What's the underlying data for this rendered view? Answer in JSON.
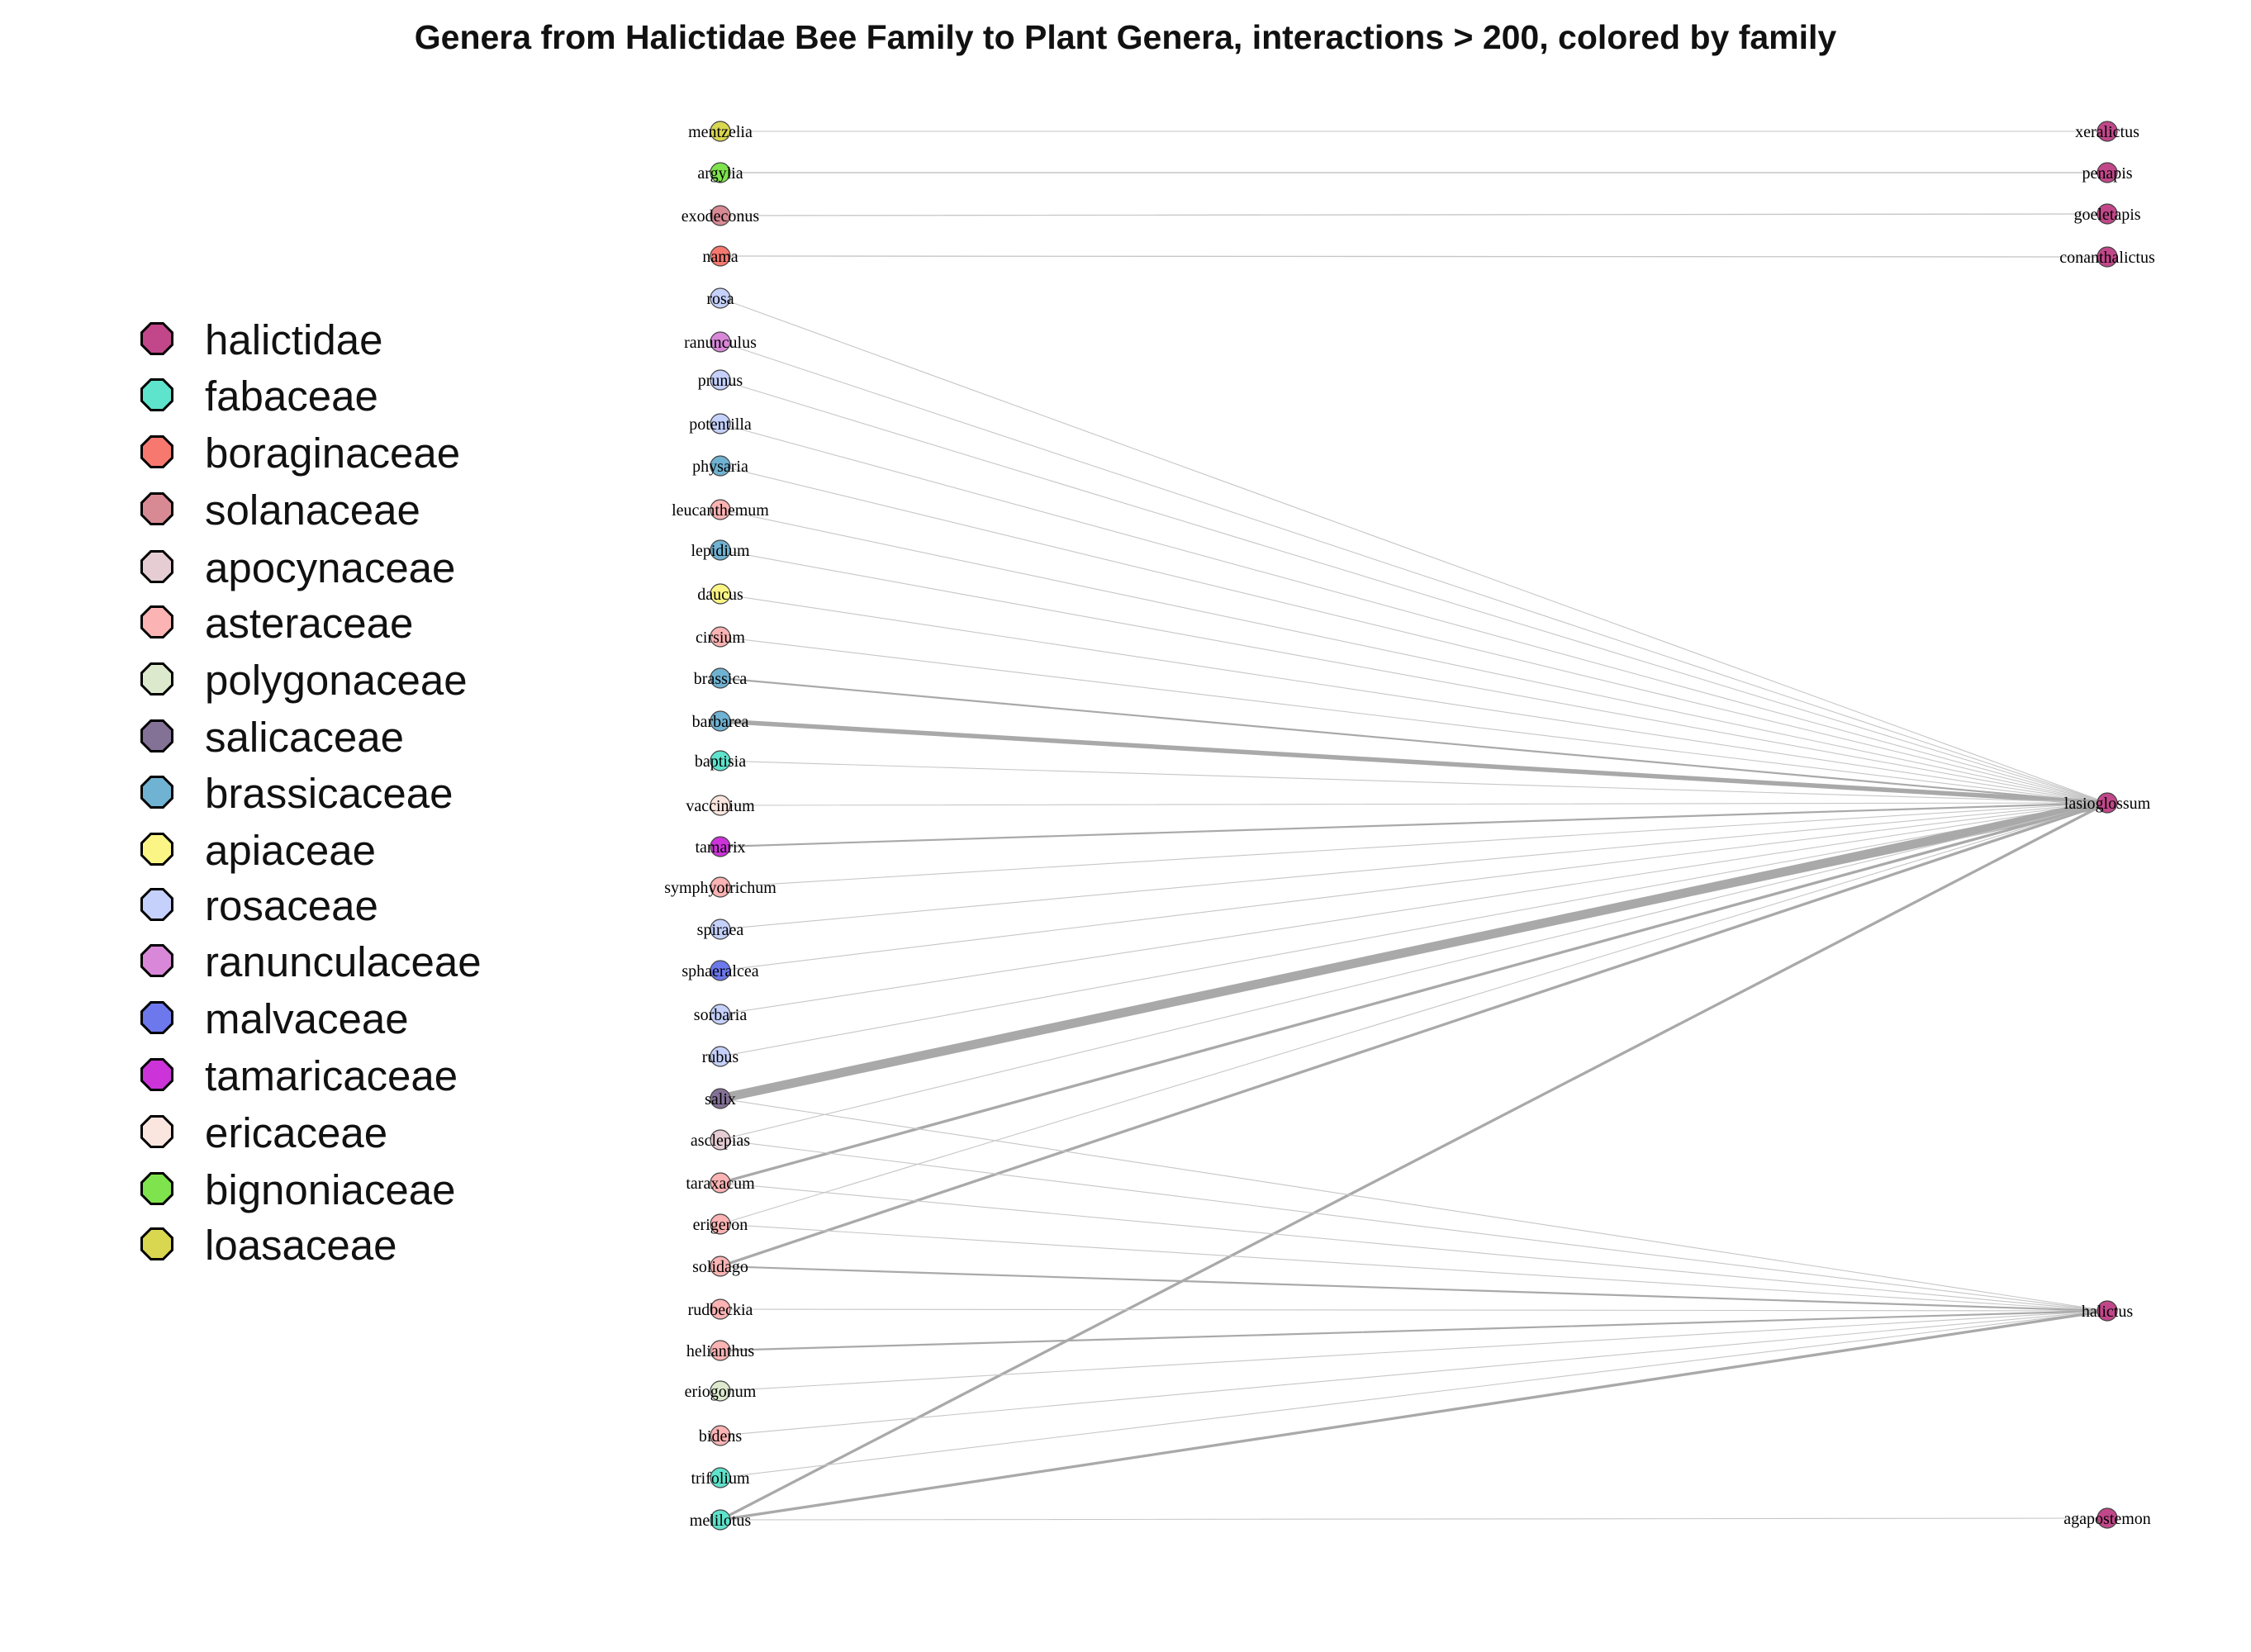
{
  "title": "Genera from Halictidae Bee Family to Plant Genera, interactions > 200, colored by family",
  "legend": [
    {
      "family": "halictidae",
      "color": "#c2478a"
    },
    {
      "family": "fabaceae",
      "color": "#5ee3cc"
    },
    {
      "family": "boraginaceae",
      "color": "#f7786f"
    },
    {
      "family": "solanaceae",
      "color": "#d88a94"
    },
    {
      "family": "apocynaceae",
      "color": "#e6cdd3"
    },
    {
      "family": "asteraceae",
      "color": "#fcb3b3"
    },
    {
      "family": "polygonaceae",
      "color": "#dce9cd"
    },
    {
      "family": "salicaceae",
      "color": "#847196"
    },
    {
      "family": "brassicaceae",
      "color": "#70b2d2"
    },
    {
      "family": "apiaceae",
      "color": "#fbf585"
    },
    {
      "family": "rosaceae",
      "color": "#c5d1fb"
    },
    {
      "family": "ranunculaceae",
      "color": "#d988d9"
    },
    {
      "family": "malvaceae",
      "color": "#6c78ec"
    },
    {
      "family": "tamaricaceae",
      "color": "#cc33d9"
    },
    {
      "family": "ericaceae",
      "color": "#fbe6df"
    },
    {
      "family": "bignoniaceae",
      "color": "#7ee34c"
    },
    {
      "family": "loasaceae",
      "color": "#d9d650"
    }
  ],
  "plant_nodes": [
    {
      "name": "mentzelia",
      "family": "loasaceae"
    },
    {
      "name": "argylia",
      "family": "bignoniaceae"
    },
    {
      "name": "exodeconus",
      "family": "solanaceae"
    },
    {
      "name": "nama",
      "family": "boraginaceae"
    },
    {
      "name": "rosa",
      "family": "rosaceae"
    },
    {
      "name": "ranunculus",
      "family": "ranunculaceae"
    },
    {
      "name": "prunus",
      "family": "rosaceae"
    },
    {
      "name": "potentilla",
      "family": "rosaceae"
    },
    {
      "name": "physaria",
      "family": "brassicaceae"
    },
    {
      "name": "leucanthemum",
      "family": "asteraceae"
    },
    {
      "name": "lepidium",
      "family": "brassicaceae"
    },
    {
      "name": "daucus",
      "family": "apiaceae"
    },
    {
      "name": "cirsium",
      "family": "asteraceae"
    },
    {
      "name": "brassica",
      "family": "brassicaceae"
    },
    {
      "name": "barbarea",
      "family": "brassicaceae"
    },
    {
      "name": "baptisia",
      "family": "fabaceae"
    },
    {
      "name": "vaccinium",
      "family": "ericaceae"
    },
    {
      "name": "tamarix",
      "family": "tamaricaceae"
    },
    {
      "name": "symphyotrichum",
      "family": "asteraceae"
    },
    {
      "name": "spiraea",
      "family": "rosaceae"
    },
    {
      "name": "sphaeralcea",
      "family": "malvaceae"
    },
    {
      "name": "sorbaria",
      "family": "rosaceae"
    },
    {
      "name": "rubus",
      "family": "rosaceae"
    },
    {
      "name": "salix",
      "family": "salicaceae"
    },
    {
      "name": "asclepias",
      "family": "apocynaceae"
    },
    {
      "name": "taraxacum",
      "family": "asteraceae"
    },
    {
      "name": "erigeron",
      "family": "asteraceae"
    },
    {
      "name": "solidago",
      "family": "asteraceae"
    },
    {
      "name": "rudbeckia",
      "family": "asteraceae"
    },
    {
      "name": "helianthus",
      "family": "asteraceae"
    },
    {
      "name": "eriogonum",
      "family": "polygonaceae"
    },
    {
      "name": "bidens",
      "family": "asteraceae"
    },
    {
      "name": "trifolium",
      "family": "fabaceae"
    },
    {
      "name": "melilotus",
      "family": "fabaceae"
    }
  ],
  "bee_nodes": [
    {
      "name": "xeralictus",
      "family": "halictidae"
    },
    {
      "name": "penapis",
      "family": "halictidae"
    },
    {
      "name": "goeletapis",
      "family": "halictidae"
    },
    {
      "name": "conanthalictus",
      "family": "halictidae"
    },
    {
      "name": "lasioglossum",
      "family": "halictidae"
    },
    {
      "name": "halictus",
      "family": "halictidae"
    },
    {
      "name": "agapostemon",
      "family": "halictidae"
    }
  ],
  "edges": [
    {
      "from": "mentzelia",
      "to": "xeralictus",
      "weight": 1
    },
    {
      "from": "argylia",
      "to": "penapis",
      "weight": 1.4
    },
    {
      "from": "exodeconus",
      "to": "goeletapis",
      "weight": 1.2
    },
    {
      "from": "nama",
      "to": "conanthalictus",
      "weight": 1.2
    },
    {
      "from": "rosa",
      "to": "lasioglossum",
      "weight": 1
    },
    {
      "from": "ranunculus",
      "to": "lasioglossum",
      "weight": 1
    },
    {
      "from": "prunus",
      "to": "lasioglossum",
      "weight": 1
    },
    {
      "from": "potentilla",
      "to": "lasioglossum",
      "weight": 1
    },
    {
      "from": "physaria",
      "to": "lasioglossum",
      "weight": 1
    },
    {
      "from": "leucanthemum",
      "to": "lasioglossum",
      "weight": 1
    },
    {
      "from": "lepidium",
      "to": "lasioglossum",
      "weight": 1
    },
    {
      "from": "daucus",
      "to": "lasioglossum",
      "weight": 1
    },
    {
      "from": "cirsium",
      "to": "lasioglossum",
      "weight": 1
    },
    {
      "from": "brassica",
      "to": "lasioglossum",
      "weight": 2
    },
    {
      "from": "barbarea",
      "to": "lasioglossum",
      "weight": 5
    },
    {
      "from": "baptisia",
      "to": "lasioglossum",
      "weight": 1
    },
    {
      "from": "vaccinium",
      "to": "lasioglossum",
      "weight": 1
    },
    {
      "from": "tamarix",
      "to": "lasioglossum",
      "weight": 2
    },
    {
      "from": "symphyotrichum",
      "to": "lasioglossum",
      "weight": 1
    },
    {
      "from": "spiraea",
      "to": "lasioglossum",
      "weight": 1
    },
    {
      "from": "sphaeralcea",
      "to": "lasioglossum",
      "weight": 1
    },
    {
      "from": "sorbaria",
      "to": "lasioglossum",
      "weight": 1
    },
    {
      "from": "rubus",
      "to": "lasioglossum",
      "weight": 1
    },
    {
      "from": "salix",
      "to": "lasioglossum",
      "weight": 10
    },
    {
      "from": "asclepias",
      "to": "lasioglossum",
      "weight": 1
    },
    {
      "from": "taraxacum",
      "to": "lasioglossum",
      "weight": 3
    },
    {
      "from": "erigeron",
      "to": "lasioglossum",
      "weight": 1
    },
    {
      "from": "solidago",
      "to": "lasioglossum",
      "weight": 3
    },
    {
      "from": "melilotus",
      "to": "lasioglossum",
      "weight": 3
    },
    {
      "from": "salix",
      "to": "halictus",
      "weight": 1
    },
    {
      "from": "asclepias",
      "to": "halictus",
      "weight": 1
    },
    {
      "from": "taraxacum",
      "to": "halictus",
      "weight": 1
    },
    {
      "from": "erigeron",
      "to": "halictus",
      "weight": 1
    },
    {
      "from": "solidago",
      "to": "halictus",
      "weight": 2
    },
    {
      "from": "rudbeckia",
      "to": "halictus",
      "weight": 1
    },
    {
      "from": "helianthus",
      "to": "halictus",
      "weight": 2
    },
    {
      "from": "eriogonum",
      "to": "halictus",
      "weight": 1
    },
    {
      "from": "bidens",
      "to": "halictus",
      "weight": 1
    },
    {
      "from": "trifolium",
      "to": "halictus",
      "weight": 1
    },
    {
      "from": "melilotus",
      "to": "halictus",
      "weight": 3
    },
    {
      "from": "melilotus",
      "to": "agapostemon",
      "weight": 1
    }
  ]
}
